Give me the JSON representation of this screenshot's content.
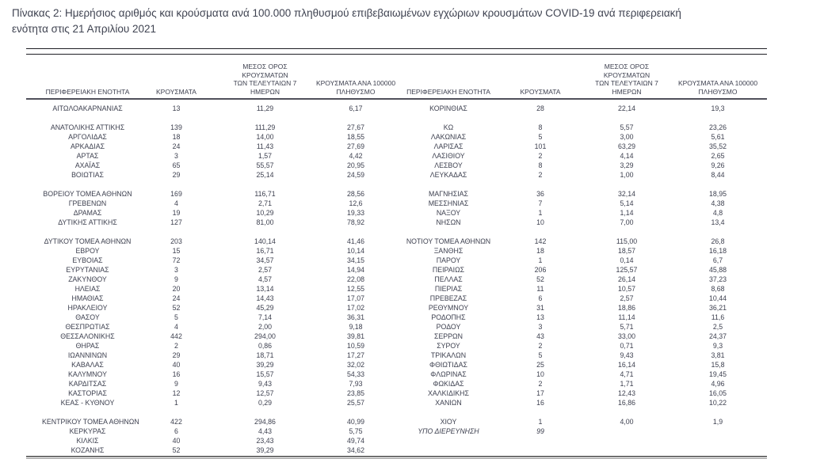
{
  "title_lines": [
    "Πίνακας 2:  Ημερήσιος αριθμός και κρούσματα ανά 100.000 πληθυσμού επιβεβαιωμένων εγχώριων κρουσμάτων COVID-19 ανά περιφερειακή",
    "ενότητα στις 21 Απριλίου 2021"
  ],
  "colors": {
    "text": "#3e4150",
    "top_rule": "#1f1f24",
    "header_rule": "#50505a",
    "bottom_rule": "#8f8f8f",
    "background": "#ffffff"
  },
  "table": {
    "columns": {
      "region": "ΠΕΡΙΦΕΡΕΙΑΚΗ ΕΝΟΤΗΤΑ",
      "cases": "ΚΡΟΥΣΜΑΤΑ",
      "avg7_lines": [
        "ΜΕΣΟΣ ΟΡΟΣ ΚΡΟΥΣΜΑΤΩΝ",
        "ΤΩΝ ΤΕΛΕΥΤΑΙΩΝ 7",
        "ΗΜΕΡΩΝ"
      ],
      "per100k_lines": [
        "ΚΡΟΥΣΜΑΤΑ ΑΝΑ 100000",
        "ΠΛΗΘΥΣΜΟ"
      ]
    },
    "rows": [
      {
        "l": [
          "ΑΙΤΩΛΟΑΚΑΡΝΑΝΙΑΣ",
          "13",
          "11,29",
          "6,17"
        ],
        "r": [
          "ΚΟΡΙΝΘΙΑΣ",
          "28",
          "22,14",
          "19,3"
        ]
      },
      {
        "l": null,
        "r": null
      },
      {
        "l": [
          "ΑΝΑΤΟΛΙΚΗΣ ΑΤΤΙΚΗΣ",
          "139",
          "111,29",
          "27,67"
        ],
        "r": [
          "ΚΩ",
          "8",
          "5,57",
          "23,26"
        ]
      },
      {
        "l": [
          "ΑΡΓΟΛΙΔΑΣ",
          "18",
          "14,00",
          "18,55"
        ],
        "r": [
          "ΛΑΚΩΝΙΑΣ",
          "5",
          "3,00",
          "5,61"
        ]
      },
      {
        "l": [
          "ΑΡΚΑΔΙΑΣ",
          "24",
          "11,43",
          "27,69"
        ],
        "r": [
          "ΛΑΡΙΣΑΣ",
          "101",
          "63,29",
          "35,52"
        ]
      },
      {
        "l": [
          "ΑΡΤΑΣ",
          "3",
          "1,57",
          "4,42"
        ],
        "r": [
          "ΛΑΣΙΘΙΟΥ",
          "2",
          "4,14",
          "2,65"
        ]
      },
      {
        "l": [
          "ΑΧΑΪΑΣ",
          "65",
          "55,57",
          "20,95"
        ],
        "r": [
          "ΛΕΣΒΟΥ",
          "8",
          "3,29",
          "9,26"
        ]
      },
      {
        "l": [
          "ΒΟΙΩΤΙΑΣ",
          "29",
          "25,14",
          "24,59"
        ],
        "r": [
          "ΛΕΥΚΑΔΑΣ",
          "2",
          "1,00",
          "8,44"
        ]
      },
      {
        "l": null,
        "r": null
      },
      {
        "l": [
          "ΒΟΡΕΙΟΥ ΤΟΜΕΑ ΑΘΗΝΩΝ",
          "169",
          "116,71",
          "28,56"
        ],
        "r": [
          "ΜΑΓΝΗΣΙΑΣ",
          "36",
          "32,14",
          "18,95"
        ]
      },
      {
        "l": [
          "ΓΡΕΒΕΝΩΝ",
          "4",
          "2,71",
          "12,6"
        ],
        "r": [
          "ΜΕΣΣΗΝΙΑΣ",
          "7",
          "5,14",
          "4,38"
        ]
      },
      {
        "l": [
          "ΔΡΑΜΑΣ",
          "19",
          "10,29",
          "19,33"
        ],
        "r": [
          "ΝΑΞΟΥ",
          "1",
          "1,14",
          "4,8"
        ]
      },
      {
        "l": [
          "ΔΥΤΙΚΗΣ ΑΤΤΙΚΗΣ",
          "127",
          "81,00",
          "78,92"
        ],
        "r": [
          "ΝΗΣΩΝ",
          "10",
          "7,00",
          "13,4"
        ]
      },
      {
        "l": null,
        "r": null
      },
      {
        "l": [
          "ΔΥΤΙΚΟΥ ΤΟΜΕΑ ΑΘΗΝΩΝ",
          "203",
          "140,14",
          "41,46"
        ],
        "r": [
          "ΝΟΤΙΟΥ ΤΟΜΕΑ ΑΘΗΝΩΝ",
          "142",
          "115,00",
          "26,8"
        ]
      },
      {
        "l": [
          "ΕΒΡΟΥ",
          "15",
          "16,71",
          "10,14"
        ],
        "r": [
          "ΞΑΝΘΗΣ",
          "18",
          "18,57",
          "16,18"
        ]
      },
      {
        "l": [
          "ΕΥΒΟΙΑΣ",
          "72",
          "34,57",
          "34,15"
        ],
        "r": [
          "ΠΑΡΟΥ",
          "1",
          "0,14",
          "6,7"
        ]
      },
      {
        "l": [
          "ΕΥΡΥΤΑΝΙΑΣ",
          "3",
          "2,57",
          "14,94"
        ],
        "r": [
          "ΠΕΙΡΑΙΩΣ",
          "206",
          "125,57",
          "45,88"
        ]
      },
      {
        "l": [
          "ΖΑΚΥΝΘΟΥ",
          "9",
          "4,57",
          "22,08"
        ],
        "r": [
          "ΠΕΛΛΑΣ",
          "52",
          "26,14",
          "37,23"
        ]
      },
      {
        "l": [
          "ΗΛΕΙΑΣ",
          "20",
          "13,14",
          "12,55"
        ],
        "r": [
          "ΠΙΕΡΙΑΣ",
          "11",
          "10,57",
          "8,68"
        ]
      },
      {
        "l": [
          "ΗΜΑΘΙΑΣ",
          "24",
          "14,43",
          "17,07"
        ],
        "r": [
          "ΠΡΕΒΕΖΑΣ",
          "6",
          "2,57",
          "10,44"
        ]
      },
      {
        "l": [
          "ΗΡΑΚΛΕΙΟΥ",
          "52",
          "45,29",
          "17,02"
        ],
        "r": [
          "ΡΕΘΥΜΝΟΥ",
          "31",
          "18,86",
          "36,21"
        ]
      },
      {
        "l": [
          "ΘΑΣΟΥ",
          "5",
          "7,14",
          "36,31"
        ],
        "r": [
          "ΡΟΔΟΠΗΣ",
          "13",
          "11,14",
          "11,6"
        ]
      },
      {
        "l": [
          "ΘΕΣΠΡΩΤΙΑΣ",
          "4",
          "2,00",
          "9,18"
        ],
        "r": [
          "ΡΟΔΟΥ",
          "3",
          "5,71",
          "2,5"
        ]
      },
      {
        "l": [
          "ΘΕΣΣΑΛΟΝΙΚΗΣ",
          "442",
          "294,00",
          "39,81"
        ],
        "r": [
          "ΣΕΡΡΩΝ",
          "43",
          "33,00",
          "24,37"
        ]
      },
      {
        "l": [
          "ΘΗΡΑΣ",
          "2",
          "0,86",
          "10,59"
        ],
        "r": [
          "ΣΥΡΟΥ",
          "2",
          "0,71",
          "9,3"
        ]
      },
      {
        "l": [
          "ΙΩΑΝΝΙΝΩΝ",
          "29",
          "18,71",
          "17,27"
        ],
        "r": [
          "ΤΡΙΚΑΛΩΝ",
          "5",
          "9,43",
          "3,81"
        ]
      },
      {
        "l": [
          "ΚΑΒΑΛΑΣ",
          "40",
          "39,29",
          "32,02"
        ],
        "r": [
          "ΦΘΙΩΤΙΔΑΣ",
          "25",
          "16,14",
          "15,8"
        ]
      },
      {
        "l": [
          "ΚΑΛΥΜΝΟΥ",
          "16",
          "15,57",
          "54,33"
        ],
        "r": [
          "ΦΛΩΡΙΝΑΣ",
          "10",
          "4,71",
          "19,45"
        ]
      },
      {
        "l": [
          "ΚΑΡΔΙΤΣΑΣ",
          "9",
          "9,43",
          "7,93"
        ],
        "r": [
          "ΦΩΚΙΔΑΣ",
          "2",
          "1,71",
          "4,96"
        ]
      },
      {
        "l": [
          "ΚΑΣΤΟΡΙΑΣ",
          "12",
          "12,57",
          "23,85"
        ],
        "r": [
          "ΧΑΛΚΙΔΙΚΗΣ",
          "17",
          "12,43",
          "16,05"
        ]
      },
      {
        "l": [
          "ΚΕΑΣ - ΚΥΘΝΟΥ",
          "1",
          "0,29",
          "25,57"
        ],
        "r": [
          "ΧΑΝΙΩΝ",
          "16",
          "16,86",
          "10,22"
        ]
      },
      {
        "l": null,
        "r": null
      },
      {
        "l": [
          "ΚΕΝΤΡΙΚΟΥ ΤΟΜΕΑ ΑΘΗΝΩΝ",
          "422",
          "294,86",
          "40,99"
        ],
        "r": [
          "ΧΙΟΥ",
          "1",
          "4,00",
          "1,9"
        ]
      },
      {
        "l": [
          "ΚΕΡΚΥΡΑΣ",
          "6",
          "4,43",
          "5,75"
        ],
        "r": [
          "ΥΠΟ ΔΙΕΡΕΥΝΗΣΗ",
          "99",
          "",
          ""
        ],
        "ri": true
      },
      {
        "l": [
          "ΚΙΛΚΙΣ",
          "40",
          "23,43",
          "49,74"
        ],
        "r": null
      },
      {
        "l": [
          "ΚΟΖΑΝΗΣ",
          "52",
          "39,29",
          "34,62"
        ],
        "r": null
      }
    ]
  }
}
